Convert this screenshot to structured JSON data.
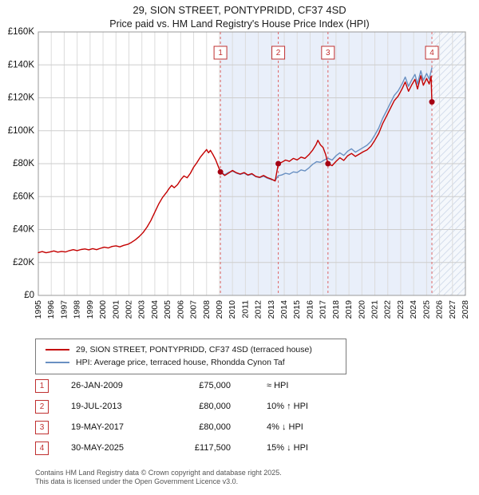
{
  "title": "29, SION STREET, PONTYPRIDD, CF37 4SD",
  "subtitle": "Price paid vs. HM Land Registry's House Price Index (HPI)",
  "chart_data": {
    "type": "line",
    "x_range": [
      1995,
      2028
    ],
    "y_range": [
      0,
      160000
    ],
    "y_ticks": [
      0,
      20000,
      40000,
      60000,
      80000,
      100000,
      120000,
      140000,
      160000
    ],
    "y_tick_labels": [
      "£0",
      "£20K",
      "£40K",
      "£60K",
      "£80K",
      "£100K",
      "£120K",
      "£140K",
      "£160K"
    ],
    "x_ticks": [
      "1995",
      "1996",
      "1997",
      "1998",
      "1999",
      "2000",
      "2001",
      "2002",
      "2003",
      "2004",
      "2005",
      "2006",
      "2007",
      "2008",
      "2009",
      "2010",
      "2011",
      "2012",
      "2013",
      "2014",
      "2015",
      "2016",
      "2017",
      "2018",
      "2019",
      "2020",
      "2021",
      "2022",
      "2023",
      "2024",
      "2025",
      "2026",
      "2027",
      "2028"
    ],
    "grid": true,
    "legend_position": "bottom",
    "shaded_region": {
      "from": 2009.07,
      "to": 2025.41,
      "color": "#e9effa"
    },
    "hatched_region": {
      "from": 2025.41,
      "to": 2028,
      "line_color": "#c9d4e6",
      "bg_color": "#f5f8fc"
    },
    "marker_line_color": "#dd6666",
    "marker_box_color": "#c03030",
    "dot_color": "#a50012",
    "markers": [
      {
        "label": "1",
        "x": 2009.07,
        "y": 75000
      },
      {
        "label": "2",
        "x": 2013.54,
        "y": 80000
      },
      {
        "label": "3",
        "x": 2017.38,
        "y": 80000
      },
      {
        "label": "4",
        "x": 2025.41,
        "y": 117500
      }
    ],
    "series": [
      {
        "name": "29, SION STREET, PONTYPRIDD, CF37 4SD (terraced house)",
        "color": "#c40000",
        "points": [
          [
            1995,
            26000
          ],
          [
            1995.3,
            26600
          ],
          [
            1995.6,
            25900
          ],
          [
            1995.9,
            26400
          ],
          [
            1996.2,
            27000
          ],
          [
            1996.5,
            26300
          ],
          [
            1996.8,
            26700
          ],
          [
            1997.1,
            26400
          ],
          [
            1997.4,
            27200
          ],
          [
            1997.7,
            27800
          ],
          [
            1998,
            27200
          ],
          [
            1998.3,
            27900
          ],
          [
            1998.6,
            28200
          ],
          [
            1998.9,
            27700
          ],
          [
            1999.2,
            28400
          ],
          [
            1999.5,
            27800
          ],
          [
            1999.8,
            28600
          ],
          [
            2000.1,
            29300
          ],
          [
            2000.4,
            28800
          ],
          [
            2000.7,
            29700
          ],
          [
            2001,
            30100
          ],
          [
            2001.3,
            29500
          ],
          [
            2001.6,
            30400
          ],
          [
            2001.9,
            31000
          ],
          [
            2002.2,
            32200
          ],
          [
            2002.5,
            33800
          ],
          [
            2002.8,
            35800
          ],
          [
            2003.1,
            38200
          ],
          [
            2003.4,
            41500
          ],
          [
            2003.7,
            45500
          ],
          [
            2004,
            50500
          ],
          [
            2004.3,
            55500
          ],
          [
            2004.6,
            59500
          ],
          [
            2004.9,
            62500
          ],
          [
            2005.1,
            64800
          ],
          [
            2005.3,
            66800
          ],
          [
            2005.5,
            65400
          ],
          [
            2005.75,
            67200
          ],
          [
            2006,
            70200
          ],
          [
            2006.25,
            72600
          ],
          [
            2006.5,
            71400
          ],
          [
            2006.75,
            74200
          ],
          [
            2007,
            77800
          ],
          [
            2007.25,
            80600
          ],
          [
            2007.5,
            83800
          ],
          [
            2007.75,
            86200
          ],
          [
            2008,
            88600
          ],
          [
            2008.15,
            86600
          ],
          [
            2008.3,
            88100
          ],
          [
            2008.5,
            85400
          ],
          [
            2008.7,
            82400
          ],
          [
            2008.9,
            78400
          ],
          [
            2009.07,
            75000
          ],
          [
            2009.4,
            72800
          ],
          [
            2009.7,
            74300
          ],
          [
            2010,
            75900
          ],
          [
            2010.3,
            74500
          ],
          [
            2010.6,
            73700
          ],
          [
            2010.9,
            74600
          ],
          [
            2011.2,
            73100
          ],
          [
            2011.5,
            74000
          ],
          [
            2011.8,
            72300
          ],
          [
            2012.1,
            71700
          ],
          [
            2012.4,
            72800
          ],
          [
            2012.7,
            71500
          ],
          [
            2013,
            70700
          ],
          [
            2013.3,
            69500
          ],
          [
            2013.54,
            80000
          ],
          [
            2013.8,
            80800
          ],
          [
            2014.1,
            82200
          ],
          [
            2014.4,
            81400
          ],
          [
            2014.7,
            83200
          ],
          [
            2015,
            82300
          ],
          [
            2015.3,
            84000
          ],
          [
            2015.6,
            83200
          ],
          [
            2015.9,
            85400
          ],
          [
            2016.2,
            88300
          ],
          [
            2016.45,
            91500
          ],
          [
            2016.6,
            94200
          ],
          [
            2016.8,
            91400
          ],
          [
            2017,
            89800
          ],
          [
            2017.2,
            85600
          ],
          [
            2017.38,
            80000
          ],
          [
            2017.7,
            78800
          ],
          [
            2018,
            81400
          ],
          [
            2018.3,
            83600
          ],
          [
            2018.6,
            82000
          ],
          [
            2018.9,
            84800
          ],
          [
            2019.2,
            86200
          ],
          [
            2019.5,
            84400
          ],
          [
            2019.8,
            85800
          ],
          [
            2020.1,
            87200
          ],
          [
            2020.4,
            88400
          ],
          [
            2020.7,
            90600
          ],
          [
            2021,
            94200
          ],
          [
            2021.3,
            98400
          ],
          [
            2021.6,
            104200
          ],
          [
            2021.9,
            108800
          ],
          [
            2022.2,
            113600
          ],
          [
            2022.5,
            118200
          ],
          [
            2022.8,
            121000
          ],
          [
            2023.1,
            125400
          ],
          [
            2023.35,
            129600
          ],
          [
            2023.6,
            124000
          ],
          [
            2023.85,
            127800
          ],
          [
            2024.1,
            131200
          ],
          [
            2024.3,
            125400
          ],
          [
            2024.55,
            133400
          ],
          [
            2024.75,
            127600
          ],
          [
            2025,
            131800
          ],
          [
            2025.2,
            128400
          ],
          [
            2025.35,
            133000
          ],
          [
            2025.41,
            117500
          ]
        ]
      },
      {
        "name": "HPI: Average price, terraced house, Rhondda Cynon Taf",
        "color": "#6990c2",
        "points": [
          [
            2009.07,
            75000
          ],
          [
            2009.4,
            73300
          ],
          [
            2009.7,
            74700
          ],
          [
            2010,
            75500
          ],
          [
            2010.3,
            74300
          ],
          [
            2010.6,
            73500
          ],
          [
            2010.9,
            74300
          ],
          [
            2011.2,
            72900
          ],
          [
            2011.5,
            73600
          ],
          [
            2011.8,
            72100
          ],
          [
            2012.1,
            71500
          ],
          [
            2012.4,
            72400
          ],
          [
            2012.7,
            71200
          ],
          [
            2013,
            70300
          ],
          [
            2013.3,
            69900
          ],
          [
            2013.54,
            72700
          ],
          [
            2013.8,
            73100
          ],
          [
            2014.1,
            74200
          ],
          [
            2014.4,
            73600
          ],
          [
            2014.7,
            75000
          ],
          [
            2015,
            74600
          ],
          [
            2015.3,
            76200
          ],
          [
            2015.6,
            75600
          ],
          [
            2015.9,
            77400
          ],
          [
            2016.2,
            79600
          ],
          [
            2016.5,
            81200
          ],
          [
            2016.8,
            80800
          ],
          [
            2017,
            81800
          ],
          [
            2017.2,
            82600
          ],
          [
            2017.38,
            83300
          ],
          [
            2017.7,
            82200
          ],
          [
            2018,
            84800
          ],
          [
            2018.3,
            86600
          ],
          [
            2018.6,
            85000
          ],
          [
            2018.9,
            87600
          ],
          [
            2019.2,
            89000
          ],
          [
            2019.5,
            87000
          ],
          [
            2019.8,
            88400
          ],
          [
            2020.1,
            89800
          ],
          [
            2020.4,
            91200
          ],
          [
            2020.7,
            93600
          ],
          [
            2021,
            97400
          ],
          [
            2021.3,
            101600
          ],
          [
            2021.6,
            107400
          ],
          [
            2021.9,
            112000
          ],
          [
            2022.2,
            116800
          ],
          [
            2022.5,
            121400
          ],
          [
            2022.8,
            124200
          ],
          [
            2023.1,
            128400
          ],
          [
            2023.35,
            132600
          ],
          [
            2023.6,
            127000
          ],
          [
            2023.85,
            130800
          ],
          [
            2024.1,
            134200
          ],
          [
            2024.3,
            128400
          ],
          [
            2024.55,
            136400
          ],
          [
            2024.75,
            130600
          ],
          [
            2025,
            134800
          ],
          [
            2025.2,
            131400
          ],
          [
            2025.41,
            138200
          ]
        ]
      }
    ]
  },
  "sales": [
    {
      "num": "1",
      "date": "26-JAN-2009",
      "price": "£75,000",
      "hpi": "≈ HPI"
    },
    {
      "num": "2",
      "date": "19-JUL-2013",
      "price": "£80,000",
      "hpi": "10% ↑ HPI"
    },
    {
      "num": "3",
      "date": "19-MAY-2017",
      "price": "£80,000",
      "hpi": "4% ↓ HPI"
    },
    {
      "num": "4",
      "date": "30-MAY-2025",
      "price": "£117,500",
      "hpi": "15% ↓ HPI"
    }
  ],
  "footer": {
    "line1": "Contains HM Land Registry data © Crown copyright and database right 2025.",
    "line2": "This data is licensed under the Open Government Licence v3.0."
  }
}
